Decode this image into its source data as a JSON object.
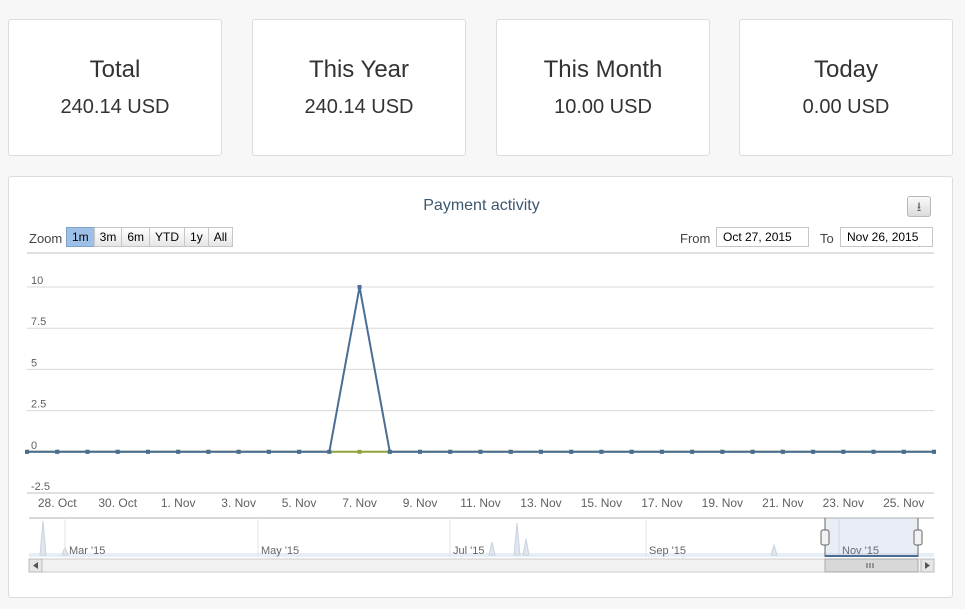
{
  "cards": [
    {
      "title": "Total",
      "value": "240.14 USD"
    },
    {
      "title": "This Year",
      "value": "240.14 USD"
    },
    {
      "title": "This Month",
      "value": "10.00 USD"
    },
    {
      "title": "Today",
      "value": "0.00 USD"
    }
  ],
  "toolbar": {
    "zoom_label": "Zoom",
    "zoom_buttons": [
      "1m",
      "3m",
      "6m",
      "YTD",
      "1y",
      "All"
    ],
    "active_zoom": "1m",
    "from_label": "From",
    "from_value": "Oct 27, 2015",
    "to_label": "To",
    "to_value": "Nov 26, 2015",
    "export_icon": "download-icon"
  },
  "chart_data": {
    "type": "line",
    "title": "Payment activity",
    "xlabel": "",
    "ylabel": "",
    "x_ticks": [
      "28. Oct",
      "30. Oct",
      "1. Nov",
      "3. Nov",
      "5. Nov",
      "7. Nov",
      "9. Nov",
      "11. Nov",
      "13. Nov",
      "15. Nov",
      "17. Nov",
      "19. Nov",
      "21. Nov",
      "23. Nov",
      "25. Nov"
    ],
    "y_ticks": [
      "10",
      "7.5",
      "5",
      "2.5",
      "0",
      "-2.5"
    ],
    "ylim": [
      -2.5,
      10
    ],
    "xlim": [
      "2015-10-27",
      "2015-11-26"
    ],
    "grid": true,
    "colors": {
      "series_a": "#4a6d94",
      "series_b": "#8fa23b"
    },
    "series": [
      {
        "x": [
          "2015-10-27",
          "2015-10-28",
          "2015-10-29",
          "2015-10-30",
          "2015-10-31",
          "2015-11-01",
          "2015-11-02",
          "2015-11-03",
          "2015-11-04",
          "2015-11-05",
          "2015-11-06",
          "2015-11-07",
          "2015-11-08",
          "2015-11-09",
          "2015-11-10",
          "2015-11-11",
          "2015-11-12",
          "2015-11-13",
          "2015-11-14",
          "2015-11-15",
          "2015-11-16",
          "2015-11-17",
          "2015-11-18",
          "2015-11-19",
          "2015-11-20",
          "2015-11-21",
          "2015-11-22",
          "2015-11-23",
          "2015-11-24",
          "2015-11-25",
          "2015-11-26"
        ],
        "values": [
          0,
          0,
          0,
          0,
          0,
          0,
          0,
          0,
          0,
          0,
          0,
          10,
          0,
          0,
          0,
          0,
          0,
          0,
          0,
          0,
          0,
          0,
          0,
          0,
          0,
          0,
          0,
          0,
          0,
          0,
          0
        ]
      },
      {
        "x": [
          "2015-10-27",
          "2015-10-28",
          "2015-10-29",
          "2015-10-30",
          "2015-10-31",
          "2015-11-01",
          "2015-11-02",
          "2015-11-03",
          "2015-11-04",
          "2015-11-05",
          "2015-11-06",
          "2015-11-07",
          "2015-11-08",
          "2015-11-09",
          "2015-11-10",
          "2015-11-11",
          "2015-11-12",
          "2015-11-13",
          "2015-11-14",
          "2015-11-15",
          "2015-11-16",
          "2015-11-17",
          "2015-11-18",
          "2015-11-19",
          "2015-11-20",
          "2015-11-21",
          "2015-11-22",
          "2015-11-23",
          "2015-11-24",
          "2015-11-25",
          "2015-11-26"
        ],
        "values": [
          0,
          0,
          0,
          0,
          0,
          0,
          0,
          0,
          0,
          0,
          0,
          0,
          0,
          0,
          0,
          0,
          0,
          0,
          0,
          0,
          0,
          0,
          0,
          0,
          0,
          0,
          0,
          0,
          0,
          0,
          0
        ]
      }
    ],
    "navigator": {
      "labels": [
        "Mar '15",
        "May '15",
        "Jul '15",
        "Sep '15",
        "Nov '15"
      ]
    }
  }
}
